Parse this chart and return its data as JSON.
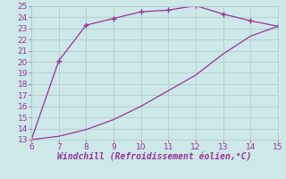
{
  "xlabel": "Windchill (Refroidissement éolien,°C)",
  "upper_x": [
    6,
    7,
    8,
    9,
    10,
    11,
    12,
    13,
    14,
    15
  ],
  "upper_y": [
    13.0,
    20.1,
    23.3,
    23.9,
    24.5,
    24.65,
    25.05,
    24.3,
    23.7,
    23.2
  ],
  "lower_x": [
    6,
    7,
    8,
    9,
    10,
    11,
    12,
    13,
    14,
    15
  ],
  "lower_y": [
    13.0,
    13.3,
    13.9,
    14.8,
    16.0,
    17.4,
    18.8,
    20.7,
    22.3,
    23.2
  ],
  "xlim": [
    6,
    15
  ],
  "ylim": [
    13,
    25
  ],
  "yticks": [
    13,
    14,
    15,
    16,
    17,
    18,
    19,
    20,
    21,
    22,
    23,
    24,
    25
  ],
  "xticks": [
    6,
    7,
    8,
    9,
    10,
    11,
    12,
    13,
    14,
    15
  ],
  "line_color": "#993399",
  "bg_color": "#cce8e8",
  "grid_color": "#b0c8c8",
  "marker": "+",
  "marker_size": 4,
  "line_width": 0.9,
  "xlabel_fontsize": 7,
  "tick_fontsize": 6.5
}
